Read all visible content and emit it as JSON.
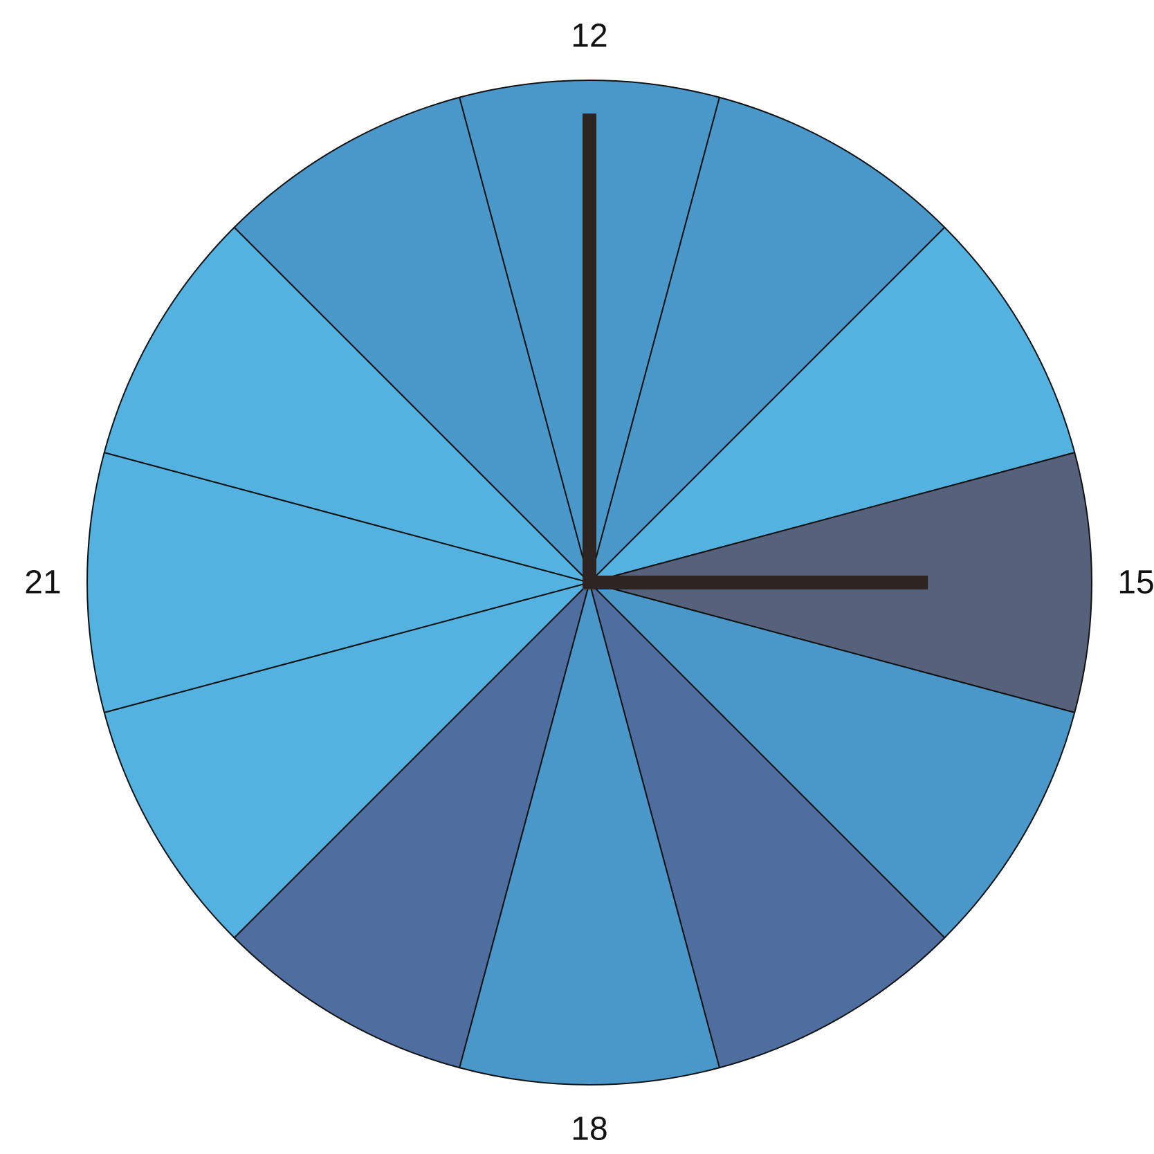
{
  "chart_data": {
    "type": "pie",
    "title": "",
    "sector_count": 12,
    "sector_span_hours": 1,
    "start_hour": 12,
    "sectors": [
      {
        "hour_range": "12-13",
        "color": "#4A97CA"
      },
      {
        "hour_range": "13-14",
        "color": "#4A97CA"
      },
      {
        "hour_range": "14-15",
        "color": "#53B2E0"
      },
      {
        "hour_range": "15-16",
        "color": "#56617C"
      },
      {
        "hour_range": "16-17",
        "color": "#4A97CA"
      },
      {
        "hour_range": "17-18",
        "color": "#4F6EA0"
      },
      {
        "hour_range": "18-19",
        "color": "#4A97CA"
      },
      {
        "hour_range": "19-20",
        "color": "#4F6EA0"
      },
      {
        "hour_range": "20-21",
        "color": "#53B2E0"
      },
      {
        "hour_range": "21-22",
        "color": "#53B2E0"
      },
      {
        "hour_range": "22-23",
        "color": "#53B2E0"
      },
      {
        "hour_range": "23-24",
        "color": "#4A97CA"
      }
    ],
    "hour_labels": [
      {
        "text": "12",
        "hour": 12
      },
      {
        "text": "15",
        "hour": 15
      },
      {
        "text": "18",
        "hour": 18
      },
      {
        "text": "21",
        "hour": 21
      }
    ],
    "hands": [
      {
        "name": "minute-hand",
        "points_to_hour": 12,
        "length_fraction": 0.92
      },
      {
        "name": "hour-hand",
        "points_to_hour": 15,
        "length_fraction": 0.66
      }
    ],
    "hand_color": "#2E2422"
  }
}
